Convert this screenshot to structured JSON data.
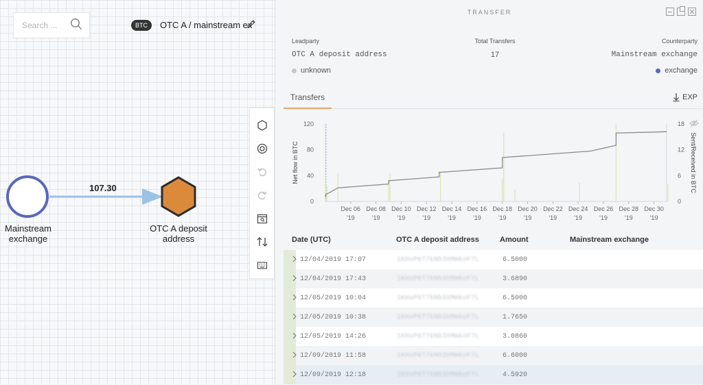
{
  "canvas": {
    "search": {
      "placeholder": "Search ..."
    },
    "currency_badge": "BTC",
    "graph_title": "OTC A / mainstream ex",
    "nodes": [
      {
        "label_line1": "Mainstream",
        "label_line2": "exchange",
        "shape": "circle",
        "color": "#5a68b8"
      },
      {
        "label_line1": "OTC A deposit",
        "label_line2": "address",
        "shape": "hexagon",
        "color": "#db8a3c"
      }
    ],
    "edge": {
      "label": "107.30",
      "color": "#9cc3e6"
    },
    "toolbar": [
      "hexagon-icon",
      "target-icon",
      "undo-icon",
      "redo-icon",
      "search-calendar-icon",
      "swap-icon",
      "keyboard-icon"
    ]
  },
  "panel": {
    "title": "TRANSFER",
    "leadparty_label": "Leadparty",
    "leadparty_value": "OTC A deposit address",
    "leadparty_tag": "unknown",
    "total_label": "Total Transfers",
    "total_value": "17",
    "counterparty_label": "Counterparty",
    "counterparty_value": "Mainstream exchange",
    "counterparty_tag": "exchange",
    "tag_colors": {
      "unknown": "#c4c6c9",
      "exchange": "#5a68b8"
    },
    "tab": "Transfers",
    "export_label": "EXP",
    "table": {
      "headers": [
        "Date (UTC)",
        "OTC A deposit address",
        "Amount",
        "Mainstream exchange"
      ],
      "rows": [
        {
          "date": "12/04/2019 17:07",
          "address": "1KHxP6T7kNb3XMmkoF7L",
          "amount": "6.5000"
        },
        {
          "date": "12/04/2019 17:43",
          "address": "1KHxP6T7kNb3XMmkoF7L",
          "amount": "3.6890"
        },
        {
          "date": "12/05/2019 10:04",
          "address": "1KHxP6T7kNb3XMmkoF7L",
          "amount": "6.5000"
        },
        {
          "date": "12/05/2019 10:38",
          "address": "1KHxP6T7kNb3XMmkoF7L",
          "amount": "1.7650"
        },
        {
          "date": "12/05/2019 14:26",
          "address": "1KHxP6T7kNb3XMmkoF7L",
          "amount": "3.0860"
        },
        {
          "date": "12/09/2019 11:58",
          "address": "1KHxP6T7kNb3XMmkoF7L",
          "amount": "6.6000"
        },
        {
          "date": "12/09/2019 12:18",
          "address": "1KHxP6T7kNb3XMmkoF7L",
          "amount": "4.5920"
        }
      ]
    }
  },
  "chart_data": {
    "type": "line",
    "ylabel": "Net flow in BTC",
    "ylabel_right": "Sent/Received in BTC",
    "ylim": [
      0,
      120
    ],
    "ylim_right": [
      0,
      18
    ],
    "yticks": [
      "0",
      "40",
      "80",
      "120"
    ],
    "yticks_right": [
      "0",
      "6",
      "12",
      "18"
    ],
    "x_ticks": [
      {
        "day": "Dec 06",
        "year": "'19"
      },
      {
        "day": "Dec 08",
        "year": "'19"
      },
      {
        "day": "Dec 10",
        "year": "'19"
      },
      {
        "day": "Dec 12",
        "year": "'19"
      },
      {
        "day": "Dec 14",
        "year": "'19"
      },
      {
        "day": "Dec 16",
        "year": "'19"
      },
      {
        "day": "Dec 18",
        "year": "'19"
      },
      {
        "day": "Dec 20",
        "year": "'19"
      },
      {
        "day": "Dec 22",
        "year": "'19"
      },
      {
        "day": "Dec 24",
        "year": "'19"
      },
      {
        "day": "Dec 26",
        "year": "'19"
      },
      {
        "day": "Dec 28",
        "year": "'19"
      },
      {
        "day": "Dec 30",
        "year": "'19"
      }
    ],
    "cumulative": [
      {
        "x": "2019-12-04",
        "y": 6.5
      },
      {
        "x": "2019-12-04",
        "y": 10.2
      },
      {
        "x": "2019-12-05",
        "y": 21
      },
      {
        "x": "2019-12-09",
        "y": 27
      },
      {
        "x": "2019-12-09",
        "y": 32
      },
      {
        "x": "2019-12-13",
        "y": 38
      },
      {
        "x": "2019-12-13",
        "y": 45
      },
      {
        "x": "2019-12-18",
        "y": 52
      },
      {
        "x": "2019-12-18",
        "y": 68
      },
      {
        "x": "2019-12-25",
        "y": 78
      },
      {
        "x": "2019-12-27",
        "y": 87
      },
      {
        "x": "2019-12-27",
        "y": 106
      },
      {
        "x": "2019-12-31",
        "y": 108
      }
    ],
    "transfers": [
      {
        "x": "2019-12-04",
        "y": 6.5
      },
      {
        "x": "2019-12-04",
        "y": 3.7
      },
      {
        "x": "2019-12-05",
        "y": 6.5
      },
      {
        "x": "2019-12-09",
        "y": 6.6
      },
      {
        "x": "2019-12-09",
        "y": 4.6
      },
      {
        "x": "2019-12-13",
        "y": 6.8
      },
      {
        "x": "2019-12-18",
        "y": 5.2
      },
      {
        "x": "2019-12-18",
        "y": 16
      },
      {
        "x": "2019-12-19",
        "y": 2.7
      },
      {
        "x": "2019-12-24",
        "y": 4.4
      },
      {
        "x": "2019-12-27",
        "y": 17.9
      },
      {
        "x": "2019-12-31",
        "y": 4.0
      }
    ],
    "colors": {
      "line": "#8a8a8a",
      "bars": "#d9e6b8",
      "marker": "#9fb6d6"
    }
  }
}
